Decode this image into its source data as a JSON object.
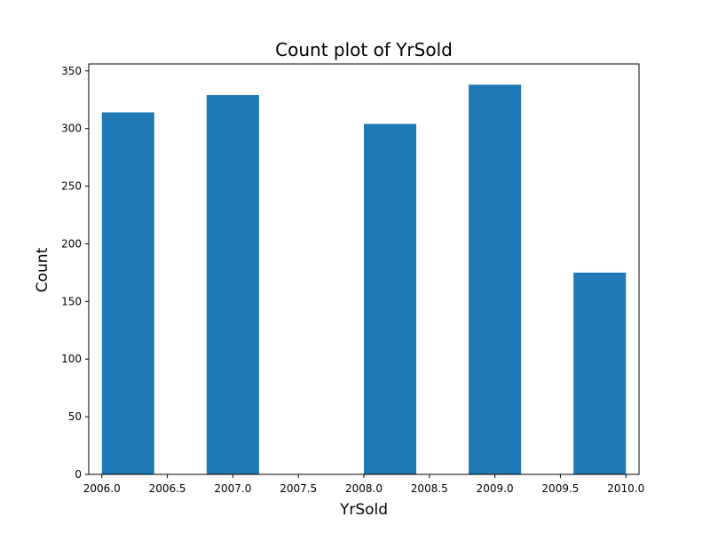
{
  "chart_data": {
    "type": "bar",
    "title": "Count plot of YrSold",
    "xlabel": "YrSold",
    "ylabel": "Count",
    "xlim": [
      2005.9,
      2010.1
    ],
    "ylim": [
      0,
      356
    ],
    "bin_width": 0.4,
    "bars": [
      {
        "x_start": 2006.0,
        "x_end": 2006.4,
        "value": 314
      },
      {
        "x_start": 2006.8,
        "x_end": 2007.2,
        "value": 329
      },
      {
        "x_start": 2008.0,
        "x_end": 2008.4,
        "value": 304
      },
      {
        "x_start": 2008.8,
        "x_end": 2009.2,
        "value": 338
      },
      {
        "x_start": 2009.6,
        "x_end": 2010.0,
        "value": 175
      }
    ],
    "xticks": [
      "2006.0",
      "2006.5",
      "2007.0",
      "2007.5",
      "2008.0",
      "2008.5",
      "2009.0",
      "2009.5",
      "2010.0"
    ],
    "yticks": [
      "0",
      "50",
      "100",
      "150",
      "200",
      "250",
      "300",
      "350"
    ],
    "bar_color": "#1f77b4",
    "grid": false,
    "legend": "none"
  }
}
